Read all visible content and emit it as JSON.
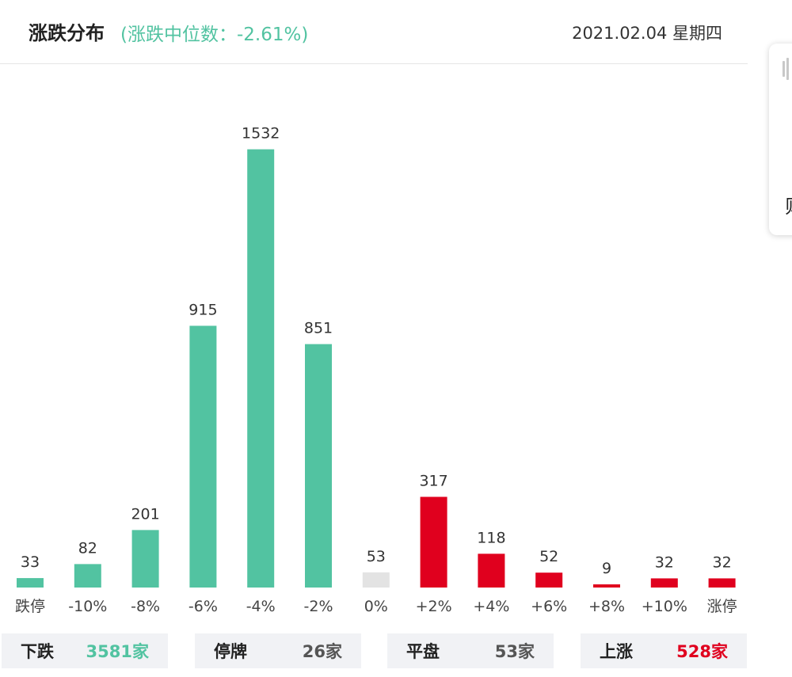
{
  "header": {
    "title": "涨跌分布",
    "median": "(涨跌中位数：-2.61%)",
    "date": "2021.02.04 星期四"
  },
  "side_panel": {
    "char": "则"
  },
  "colors": {
    "down": "#52c3a1",
    "up": "#e0001e",
    "flat": "#e3e3e3"
  },
  "chart_data": {
    "type": "bar",
    "categories": [
      "跌停",
      "-10%",
      "-8%",
      "-6%",
      "-4%",
      "-2%",
      "0%",
      "+2%",
      "+4%",
      "+6%",
      "+8%",
      "+10%",
      "涨停"
    ],
    "values": [
      33,
      82,
      201,
      915,
      1532,
      851,
      53,
      317,
      118,
      52,
      9,
      32,
      32
    ],
    "bar_kinds": [
      "down",
      "down",
      "down",
      "down",
      "down",
      "down",
      "flat",
      "up",
      "up",
      "up",
      "up",
      "up",
      "up"
    ],
    "title": "涨跌分布",
    "ylim": [
      0,
      1600
    ],
    "grid": false,
    "data_labels": true
  },
  "summary": [
    {
      "label": "下跌",
      "value": "3581家",
      "kind": "down"
    },
    {
      "label": "停牌",
      "value": "26家",
      "kind": "neutral"
    },
    {
      "label": "平盘",
      "value": "53家",
      "kind": "neutral"
    },
    {
      "label": "上涨",
      "value": "528家",
      "kind": "up"
    }
  ]
}
